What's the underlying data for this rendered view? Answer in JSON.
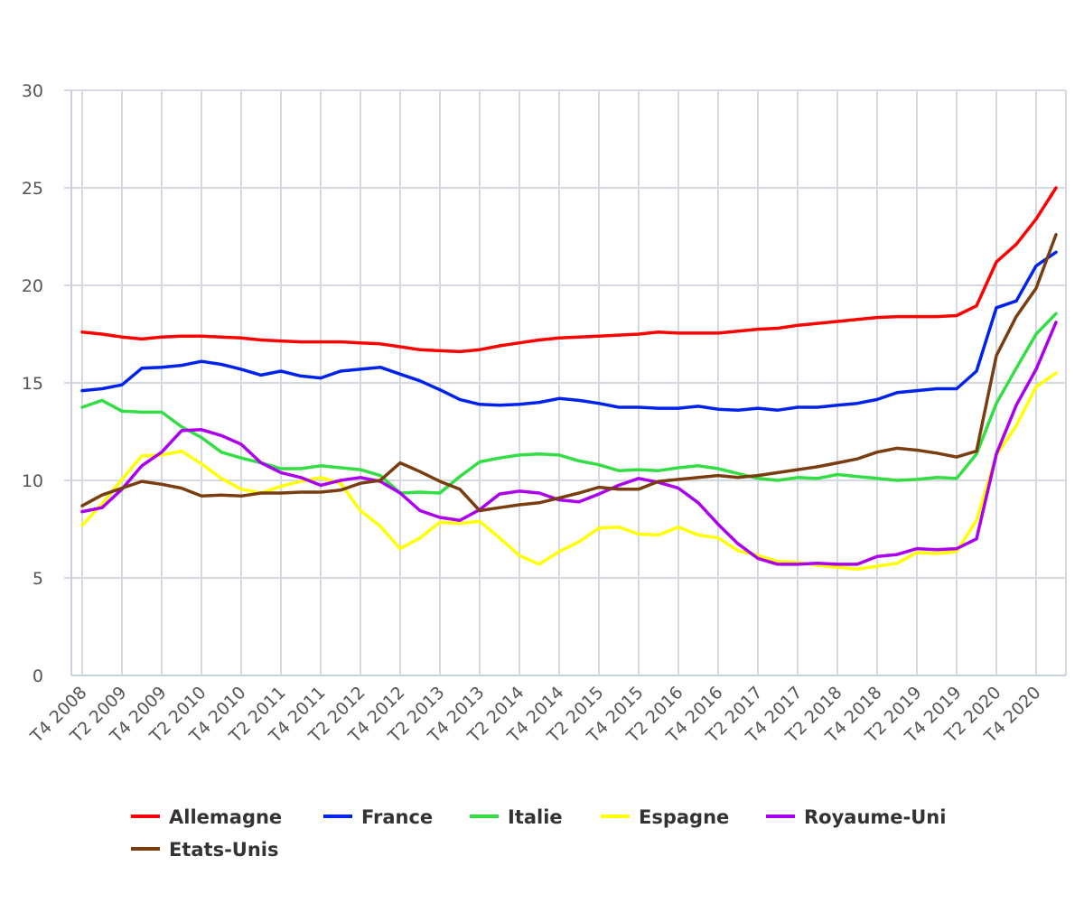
{
  "chart_data": {
    "type": "line",
    "title": "",
    "xlabel": "",
    "ylabel": "",
    "ylim": [
      0,
      30
    ],
    "yticks": [
      0,
      5,
      10,
      15,
      20,
      25,
      30
    ],
    "grid": "vertical and horizontal",
    "legend_position": "bottom",
    "x": [
      "T4 2008",
      "T1 2009",
      "T2 2009",
      "T3 2009",
      "T4 2009",
      "T1 2010",
      "T2 2010",
      "T3 2010",
      "T4 2010",
      "T1 2011",
      "T2 2011",
      "T3 2011",
      "T4 2011",
      "T1 2012",
      "T2 2012",
      "T3 2012",
      "T4 2012",
      "T1 2013",
      "T2 2013",
      "T3 2013",
      "T4 2013",
      "T1 2014",
      "T2 2014",
      "T3 2014",
      "T4 2014",
      "T1 2015",
      "T2 2015",
      "T3 2015",
      "T4 2015",
      "T1 2016",
      "T2 2016",
      "T3 2016",
      "T4 2016",
      "T1 2017",
      "T2 2017",
      "T3 2017",
      "T4 2017",
      "T1 2018",
      "T2 2018",
      "T3 2018",
      "T4 2018",
      "T1 2019",
      "T2 2019",
      "T3 2019",
      "T4 2019",
      "T1 2020",
      "T2 2020",
      "T3 2020",
      "T4 2020",
      "T1 2021"
    ],
    "x_tick_labels": [
      "T4 2008",
      "T2 2009",
      "T4 2009",
      "T2 2010",
      "T4 2010",
      "T2 2011",
      "T4 2011",
      "T2 2012",
      "T4 2012",
      "T2 2013",
      "T4 2013",
      "T2 2014",
      "T4 2014",
      "T2 2015",
      "T4 2015",
      "T2 2016",
      "T4 2016",
      "T2 2017",
      "T4 2017",
      "T2 2018",
      "T4 2018",
      "T2 2019",
      "T4 2019",
      "T2 2020",
      "T4 2020"
    ],
    "series": [
      {
        "name": "Allemagne",
        "color": "#ff0000",
        "values": [
          17.6,
          17.5,
          17.35,
          17.25,
          17.35,
          17.4,
          17.4,
          17.35,
          17.3,
          17.2,
          17.15,
          17.1,
          17.1,
          17.1,
          17.05,
          17.0,
          16.85,
          16.7,
          16.65,
          16.6,
          16.7,
          16.9,
          17.05,
          17.2,
          17.3,
          17.35,
          17.4,
          17.45,
          17.5,
          17.6,
          17.55,
          17.55,
          17.55,
          17.65,
          17.75,
          17.8,
          17.95,
          18.05,
          18.15,
          18.25,
          18.35,
          18.4,
          18.4,
          18.4,
          18.45,
          18.95,
          21.2,
          22.1,
          23.4,
          25.0
        ]
      },
      {
        "name": "France",
        "color": "#0022ee",
        "values": [
          14.6,
          14.7,
          14.9,
          15.75,
          15.8,
          15.9,
          16.1,
          15.95,
          15.7,
          15.4,
          15.6,
          15.35,
          15.25,
          15.6,
          15.7,
          15.8,
          15.45,
          15.1,
          14.65,
          14.15,
          13.9,
          13.85,
          13.9,
          14.0,
          14.2,
          14.1,
          13.95,
          13.75,
          13.75,
          13.7,
          13.7,
          13.8,
          13.65,
          13.6,
          13.7,
          13.6,
          13.75,
          13.75,
          13.85,
          13.95,
          14.15,
          14.5,
          14.6,
          14.7,
          14.7,
          15.6,
          18.85,
          19.2,
          21.0,
          21.7
        ]
      },
      {
        "name": "Italie",
        "color": "#33dd44",
        "values": [
          13.75,
          14.1,
          13.55,
          13.5,
          13.5,
          12.75,
          12.2,
          11.45,
          11.15,
          10.9,
          10.6,
          10.6,
          10.75,
          10.65,
          10.55,
          10.25,
          9.35,
          9.4,
          9.35,
          10.2,
          10.95,
          11.15,
          11.3,
          11.35,
          11.3,
          11.0,
          10.8,
          10.5,
          10.55,
          10.5,
          10.65,
          10.75,
          10.6,
          10.35,
          10.1,
          10.0,
          10.15,
          10.1,
          10.3,
          10.2,
          10.1,
          10.0,
          10.05,
          10.15,
          10.1,
          11.35,
          13.95,
          15.75,
          17.5,
          18.55
        ]
      },
      {
        "name": "Espagne",
        "color": "#ffff00",
        "values": [
          7.7,
          8.8,
          10.05,
          11.25,
          11.3,
          11.5,
          10.85,
          10.1,
          9.55,
          9.35,
          9.7,
          9.95,
          10.15,
          9.85,
          8.45,
          7.65,
          6.5,
          7.05,
          7.85,
          7.8,
          7.9,
          7.05,
          6.15,
          5.7,
          6.35,
          6.85,
          7.55,
          7.6,
          7.25,
          7.2,
          7.6,
          7.2,
          7.05,
          6.4,
          6.15,
          5.85,
          5.8,
          5.65,
          5.55,
          5.45,
          5.6,
          5.75,
          6.3,
          6.25,
          6.35,
          7.95,
          11.3,
          12.8,
          14.8,
          15.5
        ]
      },
      {
        "name": "Royaume-Uni",
        "color": "#aa00ee",
        "values": [
          8.4,
          8.6,
          9.55,
          10.75,
          11.45,
          12.55,
          12.6,
          12.3,
          11.85,
          10.9,
          10.4,
          10.15,
          9.75,
          10.0,
          10.15,
          9.95,
          9.35,
          8.45,
          8.1,
          7.95,
          8.5,
          9.3,
          9.45,
          9.35,
          9.0,
          8.9,
          9.3,
          9.75,
          10.1,
          9.9,
          9.6,
          8.85,
          7.75,
          6.75,
          6.0,
          5.7,
          5.7,
          5.75,
          5.7,
          5.7,
          6.1,
          6.2,
          6.5,
          6.45,
          6.5,
          7.0,
          11.35,
          13.85,
          15.7,
          18.1
        ]
      },
      {
        "name": "Etats-Unis",
        "color": "#7a3d10",
        "values": [
          8.7,
          9.25,
          9.6,
          9.95,
          9.8,
          9.6,
          9.2,
          9.25,
          9.2,
          9.35,
          9.35,
          9.4,
          9.4,
          9.5,
          9.85,
          10.0,
          10.9,
          10.45,
          9.95,
          9.55,
          8.45,
          8.6,
          8.75,
          8.85,
          9.1,
          9.35,
          9.65,
          9.55,
          9.55,
          9.95,
          10.05,
          10.15,
          10.25,
          10.15,
          10.25,
          10.4,
          10.55,
          10.7,
          10.9,
          11.1,
          11.45,
          11.65,
          11.55,
          11.4,
          11.2,
          11.5,
          16.4,
          18.4,
          19.85,
          22.6
        ]
      }
    ]
  }
}
